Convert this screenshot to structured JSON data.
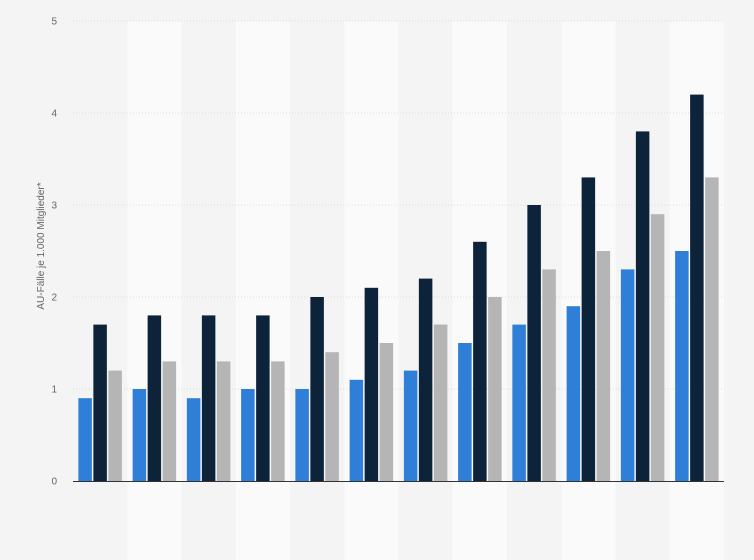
{
  "chart_data": {
    "type": "bar",
    "categories": [
      "",
      "",
      "",
      "",
      "",
      "",
      "",
      "",
      "",
      "",
      "",
      ""
    ],
    "series": [
      {
        "values": [
          0.9,
          1.0,
          0.9,
          1.0,
          1.0,
          1.1,
          1.2,
          1.5,
          1.7,
          1.9,
          2.3,
          2.5
        ]
      },
      {
        "values": [
          1.7,
          1.8,
          1.8,
          1.8,
          2.0,
          2.1,
          2.2,
          2.6,
          3.0,
          3.3,
          3.8,
          4.2
        ]
      },
      {
        "values": [
          1.2,
          1.3,
          1.3,
          1.3,
          1.4,
          1.5,
          1.7,
          2.0,
          2.3,
          2.5,
          2.9,
          3.3
        ]
      }
    ],
    "ylabel": "AU-Fälle je 1.000 Mitglieder*",
    "ylim": [
      0,
      5
    ],
    "yticks": [
      "0",
      "1",
      "2",
      "3",
      "4",
      "5"
    ],
    "grid": true,
    "colors": [
      "#2f7ed8",
      "#0d233a",
      "#b5b5b5"
    ],
    "band_color": "#fafafa",
    "grid_color": "#dcdcdc",
    "axis_color": "#333333"
  }
}
